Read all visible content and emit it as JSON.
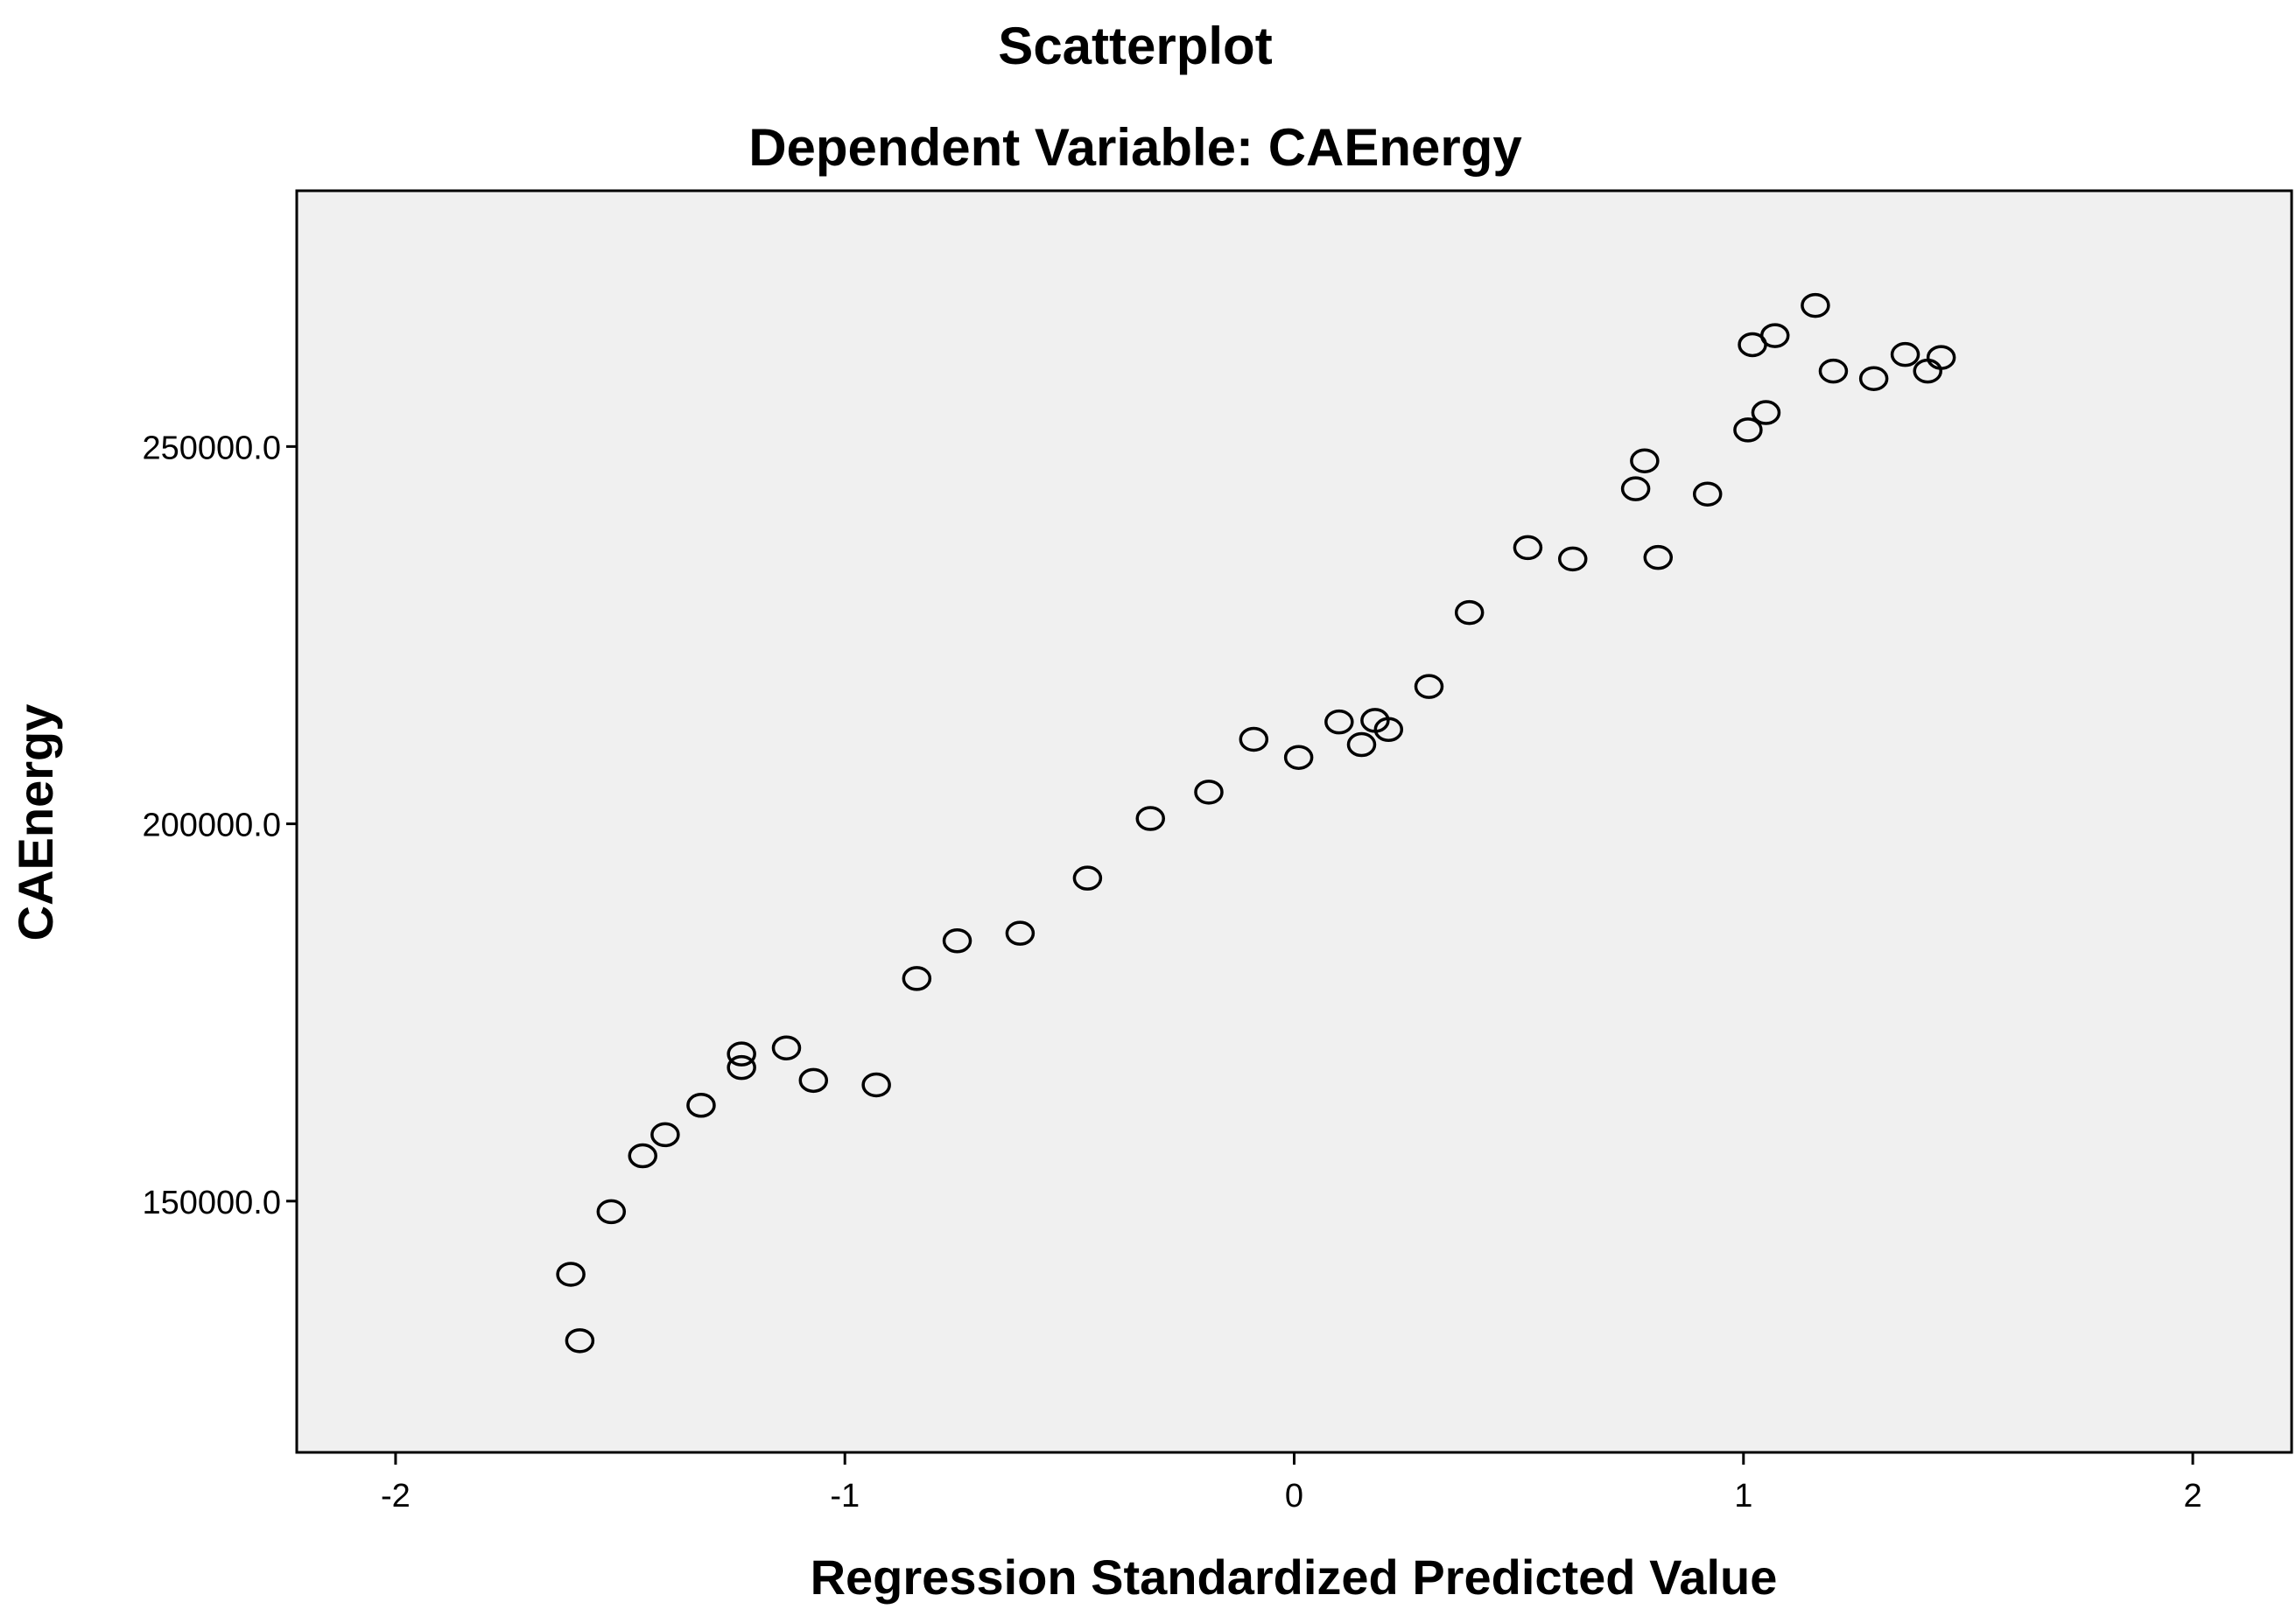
{
  "chart_data": {
    "type": "scatter",
    "title": "Scatterplot",
    "subtitle": "Dependent Variable: CAEnergy",
    "xlabel": "Regression Standardized Predicted Value",
    "ylabel": "CAEnergy",
    "xlim": [
      -2.22,
      2.22
    ],
    "ylim": [
      116700,
      283900
    ],
    "x_ticks": [
      -2,
      -1,
      0,
      1,
      2
    ],
    "x_tick_labels": [
      "-2",
      "-1",
      "0",
      "1",
      "2"
    ],
    "y_ticks": [
      150000,
      200000,
      250000
    ],
    "y_tick_labels": [
      "150000.0",
      "200000.0",
      "250000.0"
    ],
    "grid": false,
    "colors": {
      "plot_background": "#f0f0f0",
      "frame": "#000000",
      "marker_stroke": "#000000"
    },
    "points": [
      {
        "x": -1.61,
        "y": 140300
      },
      {
        "x": -1.59,
        "y": 131500
      },
      {
        "x": -1.52,
        "y": 148600
      },
      {
        "x": -1.45,
        "y": 156000
      },
      {
        "x": -1.4,
        "y": 158800
      },
      {
        "x": -1.32,
        "y": 162700
      },
      {
        "x": -1.23,
        "y": 169500
      },
      {
        "x": -1.23,
        "y": 167700
      },
      {
        "x": -1.13,
        "y": 170300
      },
      {
        "x": -1.07,
        "y": 166000
      },
      {
        "x": -0.93,
        "y": 165400
      },
      {
        "x": -0.84,
        "y": 179500
      },
      {
        "x": -0.75,
        "y": 184500
      },
      {
        "x": -0.61,
        "y": 185500
      },
      {
        "x": -0.46,
        "y": 192800
      },
      {
        "x": -0.32,
        "y": 200700
      },
      {
        "x": -0.19,
        "y": 204200
      },
      {
        "x": -0.09,
        "y": 211200
      },
      {
        "x": 0.01,
        "y": 208800
      },
      {
        "x": 0.1,
        "y": 213500
      },
      {
        "x": 0.15,
        "y": 210500
      },
      {
        "x": 0.18,
        "y": 213700
      },
      {
        "x": 0.21,
        "y": 212500
      },
      {
        "x": 0.3,
        "y": 218200
      },
      {
        "x": 0.39,
        "y": 228000
      },
      {
        "x": 0.52,
        "y": 236600
      },
      {
        "x": 0.62,
        "y": 235100
      },
      {
        "x": 0.76,
        "y": 244400
      },
      {
        "x": 0.78,
        "y": 248100
      },
      {
        "x": 0.81,
        "y": 235300
      },
      {
        "x": 0.92,
        "y": 243700
      },
      {
        "x": 1.01,
        "y": 252200
      },
      {
        "x": 1.02,
        "y": 263500
      },
      {
        "x": 1.05,
        "y": 254500
      },
      {
        "x": 1.07,
        "y": 264700
      },
      {
        "x": 1.16,
        "y": 268700
      },
      {
        "x": 1.2,
        "y": 260000
      },
      {
        "x": 1.29,
        "y": 259000
      },
      {
        "x": 1.36,
        "y": 262200
      },
      {
        "x": 1.41,
        "y": 260000
      },
      {
        "x": 1.44,
        "y": 261800
      }
    ]
  }
}
